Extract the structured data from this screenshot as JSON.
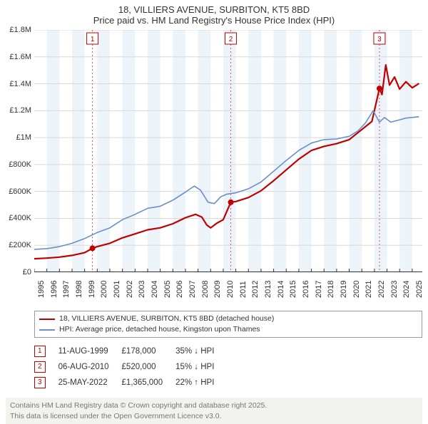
{
  "title": {
    "line1": "18, VILLIERS AVENUE, SURBITON, KT5 8BD",
    "line2": "Price paid vs. HM Land Registry's House Price Index (HPI)"
  },
  "chart": {
    "type": "line",
    "background_color": "#ffffff",
    "grid_color": "#d9d9d9",
    "axis_color": "#333333",
    "xlim": [
      1995,
      2025.8
    ],
    "ylim": [
      0,
      1800000
    ],
    "ytick_step": 200000,
    "yticks": [
      {
        "v": 0,
        "label": "£0"
      },
      {
        "v": 200000,
        "label": "£200K"
      },
      {
        "v": 400000,
        "label": "£400K"
      },
      {
        "v": 600000,
        "label": "£600K"
      },
      {
        "v": 800000,
        "label": "£800K"
      },
      {
        "v": 1000000,
        "label": "£1M"
      },
      {
        "v": 1200000,
        "label": "£1.2M"
      },
      {
        "v": 1400000,
        "label": "£1.4M"
      },
      {
        "v": 1600000,
        "label": "£1.6M"
      },
      {
        "v": 1800000,
        "label": "£1.8M"
      }
    ],
    "xticks": [
      1995,
      1996,
      1997,
      1998,
      1999,
      2000,
      2001,
      2002,
      2003,
      2004,
      2005,
      2006,
      2007,
      2008,
      2009,
      2010,
      2011,
      2012,
      2013,
      2014,
      2015,
      2016,
      2017,
      2018,
      2019,
      2020,
      2021,
      2022,
      2023,
      2024,
      2025
    ],
    "alt_band_color": "#ecf3f9",
    "alt_band_years": [
      1996,
      1998,
      2000,
      2002,
      2004,
      2006,
      2008,
      2010,
      2012,
      2014,
      2016,
      2018,
      2020,
      2022,
      2024
    ],
    "marker_line_color": "#d94d6a",
    "marker_line_dash": "2,3",
    "marker_box_border": "#c00000",
    "marker_box_text": "#c00000",
    "markers": [
      {
        "id": "1",
        "x": 1999.62
      },
      {
        "id": "2",
        "x": 2010.6
      },
      {
        "id": "3",
        "x": 2022.4
      }
    ],
    "series": [
      {
        "name": "price_paid",
        "label": "18, VILLIERS AVENUE, SURBITON, KT5 8BD (detached house)",
        "color": "#c00000",
        "line_width": 2.2,
        "sale_dot_radius": 4,
        "sale_dot_color": "#c00000",
        "data": [
          [
            1995.0,
            100000
          ],
          [
            1996.0,
            105000
          ],
          [
            1997.0,
            112000
          ],
          [
            1998.0,
            125000
          ],
          [
            1999.0,
            145000
          ],
          [
            1999.62,
            178000
          ],
          [
            2000.0,
            190000
          ],
          [
            2001.0,
            215000
          ],
          [
            2002.0,
            255000
          ],
          [
            2003.0,
            285000
          ],
          [
            2004.0,
            315000
          ],
          [
            2005.0,
            330000
          ],
          [
            2006.0,
            360000
          ],
          [
            2007.0,
            405000
          ],
          [
            2007.8,
            430000
          ],
          [
            2008.3,
            410000
          ],
          [
            2008.7,
            350000
          ],
          [
            2009.0,
            330000
          ],
          [
            2009.5,
            365000
          ],
          [
            2010.0,
            390000
          ],
          [
            2010.6,
            520000
          ],
          [
            2011.0,
            525000
          ],
          [
            2012.0,
            555000
          ],
          [
            2013.0,
            605000
          ],
          [
            2014.0,
            680000
          ],
          [
            2015.0,
            760000
          ],
          [
            2016.0,
            840000
          ],
          [
            2017.0,
            905000
          ],
          [
            2018.0,
            935000
          ],
          [
            2019.0,
            955000
          ],
          [
            2020.0,
            985000
          ],
          [
            2021.0,
            1060000
          ],
          [
            2021.8,
            1120000
          ],
          [
            2022.4,
            1365000
          ],
          [
            2022.6,
            1320000
          ],
          [
            2022.9,
            1540000
          ],
          [
            2023.2,
            1390000
          ],
          [
            2023.6,
            1450000
          ],
          [
            2024.0,
            1360000
          ],
          [
            2024.5,
            1415000
          ],
          [
            2025.0,
            1370000
          ],
          [
            2025.5,
            1400000
          ]
        ],
        "sale_points": [
          [
            1999.62,
            178000
          ],
          [
            2010.6,
            520000
          ],
          [
            2022.4,
            1365000
          ]
        ]
      },
      {
        "name": "hpi",
        "label": "HPI: Average price, detached house, Kingston upon Thames",
        "color": "#6a8fc7",
        "line_width": 1.6,
        "data": [
          [
            1995.0,
            170000
          ],
          [
            1996.0,
            175000
          ],
          [
            1997.0,
            190000
          ],
          [
            1998.0,
            215000
          ],
          [
            1999.0,
            250000
          ],
          [
            2000.0,
            295000
          ],
          [
            2001.0,
            330000
          ],
          [
            2002.0,
            390000
          ],
          [
            2003.0,
            430000
          ],
          [
            2004.0,
            475000
          ],
          [
            2005.0,
            490000
          ],
          [
            2006.0,
            535000
          ],
          [
            2007.0,
            595000
          ],
          [
            2007.7,
            640000
          ],
          [
            2008.2,
            610000
          ],
          [
            2008.8,
            520000
          ],
          [
            2009.3,
            510000
          ],
          [
            2009.8,
            560000
          ],
          [
            2010.3,
            580000
          ],
          [
            2011.0,
            590000
          ],
          [
            2012.0,
            620000
          ],
          [
            2013.0,
            670000
          ],
          [
            2014.0,
            750000
          ],
          [
            2015.0,
            830000
          ],
          [
            2016.0,
            905000
          ],
          [
            2017.0,
            960000
          ],
          [
            2018.0,
            985000
          ],
          [
            2019.0,
            990000
          ],
          [
            2020.0,
            1010000
          ],
          [
            2020.7,
            1050000
          ],
          [
            2021.3,
            1110000
          ],
          [
            2021.9,
            1200000
          ],
          [
            2022.4,
            1115000
          ],
          [
            2022.8,
            1150000
          ],
          [
            2023.3,
            1115000
          ],
          [
            2023.9,
            1130000
          ],
          [
            2024.5,
            1145000
          ],
          [
            2025.0,
            1150000
          ],
          [
            2025.5,
            1155000
          ]
        ]
      }
    ]
  },
  "legend": {
    "rows": [
      {
        "color": "#c00000",
        "label": "18, VILLIERS AVENUE, SURBITON, KT5 8BD (detached house)"
      },
      {
        "color": "#6a8fc7",
        "label": "HPI: Average price, detached house, Kingston upon Thames"
      }
    ]
  },
  "sales": [
    {
      "marker": "1",
      "date": "11-AUG-1999",
      "price": "£178,000",
      "delta": "35% ↓ HPI"
    },
    {
      "marker": "2",
      "date": "06-AUG-2010",
      "price": "£520,000",
      "delta": "15% ↓ HPI"
    },
    {
      "marker": "3",
      "date": "25-MAY-2022",
      "price": "£1,365,000",
      "delta": "22% ↑ HPI"
    }
  ],
  "footer": {
    "background": "#f2f2ee",
    "color": "#777777",
    "line1": "Contains HM Land Registry data © Crown copyright and database right 2025.",
    "line2": "This data is licensed under the Open Government Licence v3.0."
  }
}
